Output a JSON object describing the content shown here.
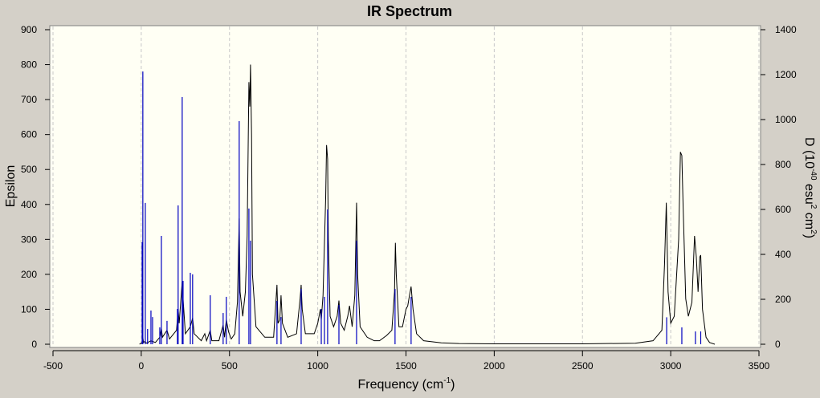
{
  "chart_data": {
    "type": "line",
    "title": "IR Spectrum",
    "xlabel": [
      "Frequency (cm",
      "-1",
      ")"
    ],
    "ylabel": "Epsilon",
    "y2label": [
      "D (10",
      "-40",
      " esu",
      "2",
      " cm",
      "2",
      ")"
    ],
    "xlim": [
      -500,
      3500
    ],
    "xticks": [
      -500,
      0,
      500,
      1000,
      1500,
      2000,
      2500,
      3000,
      3500
    ],
    "ylim": [
      0,
      900
    ],
    "yticks": [
      0,
      100,
      200,
      300,
      400,
      500,
      600,
      700,
      800,
      900
    ],
    "y2lim": [
      0,
      1400
    ],
    "y2ticks": [
      0,
      200,
      400,
      600,
      800,
      1000,
      1200,
      1400
    ],
    "grid": true,
    "series": [
      {
        "type": "line",
        "color": "#000000",
        "x": [
          -10,
          5,
          9,
          13,
          20,
          30,
          55,
          64,
          80,
          105,
          114,
          120,
          146,
          160,
          200,
          209,
          215,
          232,
          237,
          250,
          278,
          291,
          300,
          340,
          360,
          370,
          391,
          400,
          440,
          464,
          472,
          482,
          495,
          510,
          530,
          545,
          555,
          560,
          575,
          590,
          600,
          610,
          615,
          619,
          625,
          630,
          650,
          700,
          750,
          769,
          775,
          785,
          792,
          800,
          830,
          880,
          900,
          906,
          912,
          930,
          980,
          1000,
          1015,
          1020,
          1030,
          1045,
          1050,
          1056,
          1060,
          1070,
          1090,
          1110,
          1120,
          1130,
          1150,
          1170,
          1180,
          1195,
          1210,
          1220,
          1226,
          1240,
          1280,
          1300,
          1320,
          1350,
          1390,
          1420,
          1435,
          1440,
          1445,
          1460,
          1480,
          1500,
          1510,
          1520,
          1529,
          1540,
          1560,
          1600,
          1700,
          1800,
          2000,
          2500,
          2800,
          2900,
          2950,
          2965,
          2975,
          2985,
          3000,
          3020,
          3045,
          3055,
          3063,
          3070,
          3085,
          3100,
          3120,
          3135,
          3145,
          3155,
          3165,
          3170,
          3180,
          3200,
          3220,
          3250
        ],
        "values": [
          0,
          5,
          20,
          5,
          8,
          3,
          10,
          8,
          5,
          20,
          45,
          20,
          40,
          15,
          40,
          100,
          60,
          180,
          130,
          30,
          50,
          75,
          30,
          10,
          30,
          10,
          40,
          10,
          10,
          55,
          20,
          70,
          35,
          15,
          30,
          120,
          360,
          150,
          80,
          150,
          310,
          750,
          680,
          800,
          600,
          200,
          50,
          20,
          20,
          170,
          60,
          70,
          140,
          60,
          20,
          30,
          130,
          170,
          100,
          30,
          30,
          60,
          100,
          70,
          140,
          420,
          570,
          530,
          300,
          80,
          50,
          80,
          125,
          60,
          40,
          80,
          110,
          50,
          140,
          405,
          200,
          50,
          20,
          15,
          10,
          10,
          25,
          40,
          150,
          290,
          200,
          50,
          50,
          100,
          110,
          140,
          165,
          100,
          30,
          10,
          4,
          2,
          1,
          1,
          3,
          10,
          40,
          230,
          405,
          150,
          60,
          80,
          300,
          550,
          540,
          400,
          130,
          80,
          120,
          310,
          250,
          150,
          250,
          255,
          100,
          20,
          5,
          0
        ]
      },
      {
        "type": "stick",
        "axis": "y2",
        "color": "#0000c0",
        "x": [
          5,
          9,
          23,
          36,
          55,
          64,
          105,
          114,
          146,
          205,
          209,
          232,
          237,
          278,
          291,
          391,
          464,
          482,
          555,
          610,
          619,
          769,
          792,
          906,
          1020,
          1038,
          1056,
          1120,
          1220,
          1438,
          1529,
          2977,
          3063,
          3140,
          3170
        ],
        "values": [
          454,
          1214,
          629,
          68,
          150,
          121,
          75,
          482,
          104,
          157,
          618,
          1100,
          282,
          318,
          311,
          218,
          139,
          211,
          993,
          604,
          461,
          193,
          121,
          246,
          157,
          211,
          600,
          175,
          461,
          246,
          211,
          120,
          75,
          57,
          57
        ]
      }
    ]
  }
}
